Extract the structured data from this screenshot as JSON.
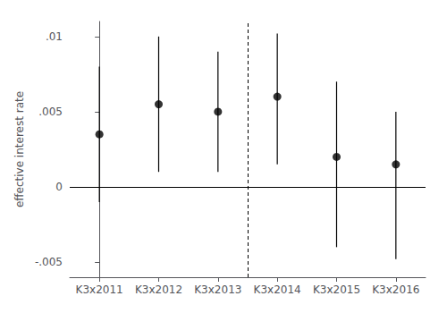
{
  "chart_data": {
    "type": "scatter",
    "ylabel": "effective interest rate",
    "categories": [
      "K3x2011",
      "K3x2012",
      "K3x2013",
      "K3x2014",
      "K3x2015",
      "K3x2016"
    ],
    "values": [
      0.0035,
      0.0055,
      0.005,
      0.006,
      0.002,
      0.0015
    ],
    "ci_lower": [
      -0.001,
      0.001,
      0.001,
      0.0015,
      -0.004,
      -0.0048
    ],
    "ci_upper": [
      0.008,
      0.01,
      0.009,
      0.0102,
      0.007,
      0.005
    ],
    "color": "#000000",
    "ylim": [
      -0.006,
      0.011
    ],
    "yticks": [
      {
        "value": -0.005,
        "label": "-.005"
      },
      0,
      {
        "value": 0.005,
        "label": ".005"
      },
      {
        "value": 0.01,
        "label": ".01"
      }
    ],
    "hline_y": 0,
    "vline_x": 2.5,
    "grid": false
  }
}
